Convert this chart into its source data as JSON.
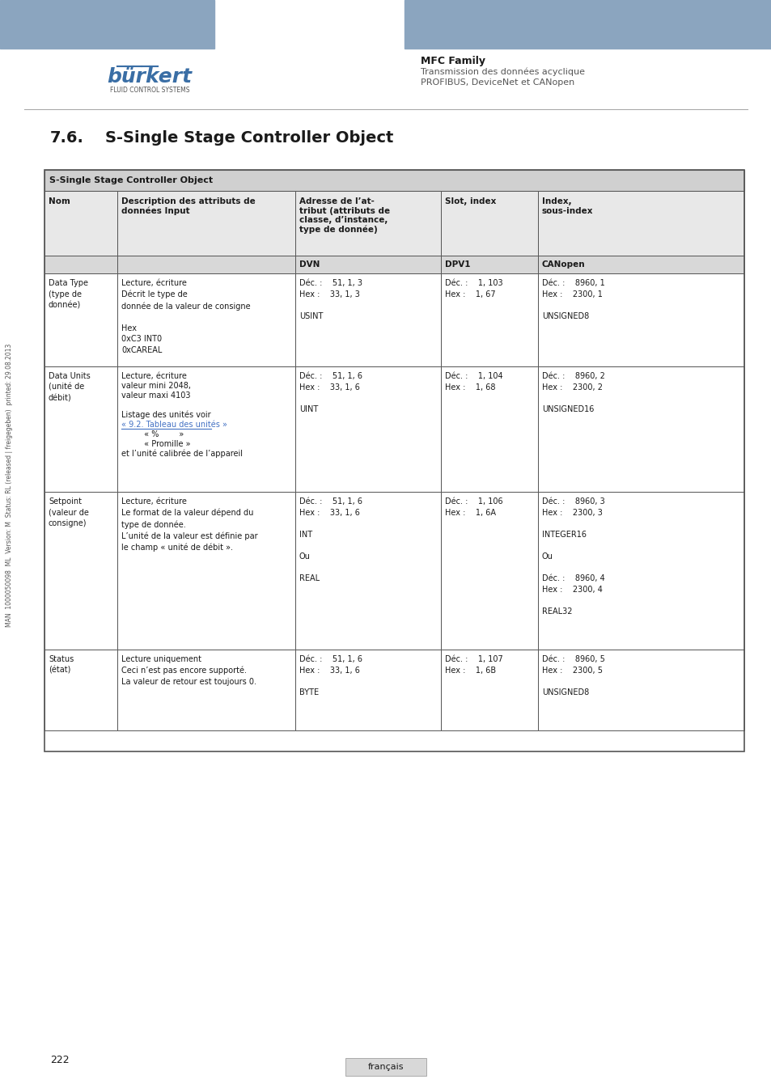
{
  "page_title": "MFC Family",
  "page_subtitle": "Transmission des données acyclique\nPROFIBUS, DeviceNet et CANopen",
  "section_title": "7.6.    S-Single Stage Controller Object",
  "table_header_main": "S-Single Stage Controller Object",
  "col_headers": [
    "Nom",
    "Description des attributs de\ndonnées Input",
    "Adresse de l’at-\ntribut (attributs de\nclasse, d’instance,\ntype de donnée)",
    "Slot, index",
    "Index,\nsous-index"
  ],
  "sub_headers": [
    "",
    "",
    "DVN",
    "DPV1",
    "CANopen"
  ],
  "rows": [
    {
      "col0": "Data Type\n(type de\ndonnée)",
      "col1": "Lecture, écriture\nDécrit le type de\ndonnée de la valeur de consigne\n\nHex\n0xC3 INT0\n0xCAREAL",
      "col2": "Déc. :    51, 1, 3\nHex :    33, 1, 3\n\nUSINT",
      "col3": "Déc. :    1, 103\nHex :    1, 67",
      "col4": "Déc. :    8960, 1\nHex :    2300, 1\n\nUNSIGNED8"
    },
    {
      "col0": "Data Units\n(unité de\ndébit)",
      "col1": "Lecture, écriture\nvaleur mini 2048,\nvaleur maxi 4103\n\nListage des unités voir\n« 9.2. Tableau des unités »\n         « %        »\n         « Promille »\net l’unité calibrée de l’appareil",
      "col2": "Déc. :    51, 1, 6\nHex :    33, 1, 6\n\nUINT",
      "col3": "Déc. :    1, 104\nHex :    1, 68",
      "col4": "Déc. :    8960, 2\nHex :    2300, 2\n\nUNSIGNED16"
    },
    {
      "col0": "Setpoint\n(valeur de\nconsigne)",
      "col1": "Lecture, écriture\nLe format de la valeur dépend du\ntype de donnée.\nL’unité de la valeur est définie par\nle champ « unité de débit ».",
      "col2": "Déc. :    51, 1, 6\nHex :    33, 1, 6\n\nINT\n\nOu\n\nREAL",
      "col3": "Déc. :    1, 106\nHex :    1, 6A",
      "col4": "Déc. :    8960, 3\nHex :    2300, 3\n\nINTEGER16\n\nOu\n\nDéc. :    8960, 4\nHex :    2300, 4\n\nREAL32"
    },
    {
      "col0": "Status\n(état)",
      "col1": "Lecture uniquement\nCeci n’est pas encore supporté.\nLa valeur de retour est toujours 0.",
      "col2": "Déc. :    51, 1, 6\nHex :    33, 1, 6\n\nBYTE",
      "col3": "Déc. :    1, 107\nHex :    1, 6B",
      "col4": "Déc. :    8960, 5\nHex :    2300, 5\n\nUNSIGNED8"
    }
  ],
  "footer_text": "français",
  "page_number": "222",
  "side_text": "MAN  1000050098  ML  Version: M  Status: RL (released | freigegeben)  printed: 29.08.2013",
  "header_bg_color": "#8ba5bf",
  "table_header_bg": "#d0d0d0",
  "col_header_bg": "#e8e8e8",
  "sub_header_bg": "#d8d8d8",
  "border_color": "#555555",
  "text_color": "#1a1a1a",
  "link_color": "#4472c4",
  "background_color": "#ffffff"
}
